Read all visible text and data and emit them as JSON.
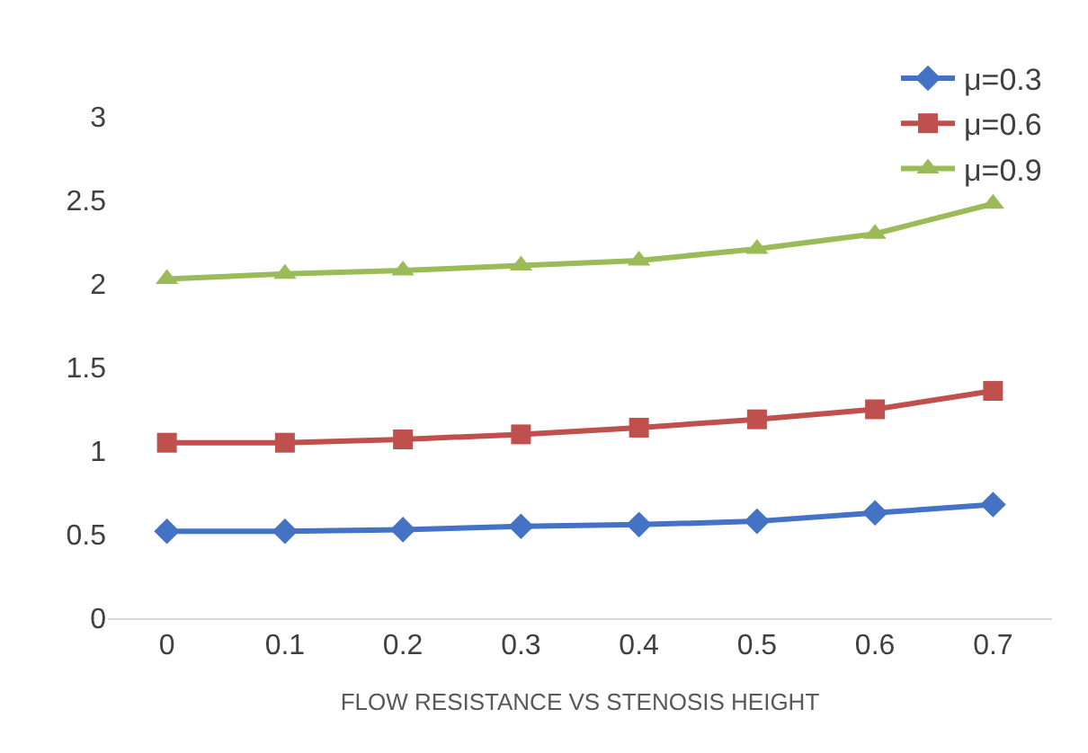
{
  "chart_data": {
    "type": "line",
    "xlabel": "FLOW RESISTANCE VS STENOSIS HEIGHT",
    "categories": [
      "0",
      "0.1",
      "0.2",
      "0.3",
      "0.4",
      "0.5",
      "0.6",
      "0.7"
    ],
    "series": [
      {
        "name": "μ=0.3",
        "color": "#4472c4",
        "marker": "diamond",
        "values": [
          0.52,
          0.52,
          0.53,
          0.55,
          0.56,
          0.58,
          0.63,
          0.68
        ]
      },
      {
        "name": "μ=0.6",
        "color": "#c0504d",
        "marker": "square",
        "values": [
          1.05,
          1.05,
          1.07,
          1.1,
          1.14,
          1.19,
          1.25,
          1.36
        ]
      },
      {
        "name": "μ=0.9",
        "color": "#9bbb59",
        "marker": "triangle",
        "values": [
          2.03,
          2.06,
          2.08,
          2.11,
          2.14,
          2.21,
          2.3,
          2.48
        ]
      }
    ],
    "ylim": [
      0,
      3
    ],
    "yticks": [
      0,
      0.5,
      1,
      1.5,
      2,
      2.5,
      3
    ],
    "grid": false,
    "legend": "top right",
    "line_style": "solid"
  }
}
